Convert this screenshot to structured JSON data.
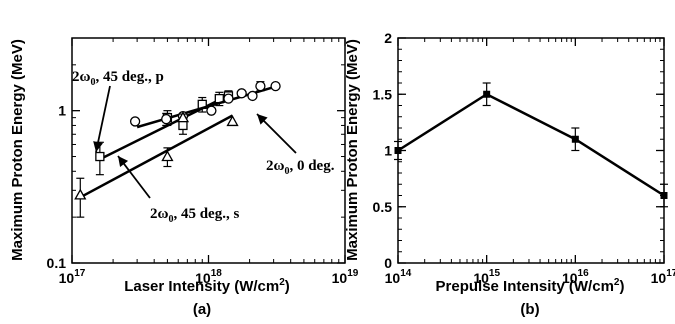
{
  "chart_data": [
    {
      "type": "scatter",
      "panel_label": "(a)",
      "xlabel": "Laser Intensity (W/cm2)",
      "ylabel": "Maximum Proton Energy (MeV)",
      "x_scale": "log",
      "y_scale": "log",
      "xlim": [
        1e+17,
        1e+19
      ],
      "ylim": [
        0.1,
        3
      ],
      "x_ticks": [
        {
          "base": "10",
          "exp": "17",
          "value": 1e+17
        },
        {
          "base": "10",
          "exp": "18",
          "value": 1e+18
        },
        {
          "base": "10",
          "exp": "19",
          "value": 1e+19
        }
      ],
      "y_ticks": [
        {
          "label": "0.1",
          "value": 0.1
        },
        {
          "label": "1",
          "value": 1
        }
      ],
      "series": [
        {
          "name": "2ω0, 45 deg., p",
          "marker": "square",
          "x": [
            1.6e+17,
            5e+17,
            6.5e+17,
            9e+17,
            1.2e+18,
            1.4e+18
          ],
          "y": [
            0.5,
            0.9,
            0.8,
            1.1,
            1.2,
            1.25
          ],
          "err": [
            0.12,
            0.1,
            0.1,
            0.12,
            0.12,
            0.1
          ],
          "fit_x": [
            1.6e+17,
            1.5e+18
          ],
          "fit_y": [
            0.48,
            1.3
          ]
        },
        {
          "name": "2ω0, 0 deg.",
          "marker": "circle",
          "x": [
            2.9e+17,
            4.9e+17,
            6.5e+17,
            1.05e+18,
            1.4e+18,
            1.75e+18,
            2.1e+18,
            2.4e+18,
            3.1e+18
          ],
          "y": [
            0.85,
            0.88,
            0.92,
            1.0,
            1.2,
            1.3,
            1.25,
            1.45,
            1.45
          ],
          "err": [
            0,
            0.08,
            0,
            0,
            0,
            0,
            0,
            0.1,
            0
          ],
          "fit_x": [
            3e+17,
            3.2e+18
          ],
          "fit_y": [
            0.78,
            1.45
          ]
        },
        {
          "name": "2ω0, 45 deg., s",
          "marker": "triangle",
          "x": [
            1.15e+17,
            5e+17,
            6.5e+17,
            1.5e+18
          ],
          "y": [
            0.28,
            0.5,
            0.9,
            0.85
          ],
          "err": [
            0.08,
            0.07,
            0.05,
            0
          ],
          "fit_x": [
            1.15e+17,
            1.5e+18
          ],
          "fit_y": [
            0.27,
            0.93
          ]
        }
      ],
      "annotations": [
        {
          "text": "2ω0, 45 deg., p",
          "main": "2ω",
          "sub": "0",
          "rest": ", 45 deg., p"
        },
        {
          "text": "2ω0, 0 deg.",
          "main": "2ω",
          "sub": "0",
          "rest": ", 0 deg."
        },
        {
          "text": "2ω0, 45 deg., s",
          "main": "2ω",
          "sub": "0",
          "rest": ", 45 deg., s"
        }
      ]
    },
    {
      "type": "line",
      "panel_label": "(b)",
      "xlabel": "Prepulse Intensity (W/cm2)",
      "ylabel": "Maximum Proton Energy (MeV)",
      "x_scale": "log",
      "y_scale": "linear",
      "xlim": [
        100000000000000.0,
        1e+17
      ],
      "ylim": [
        0,
        2
      ],
      "x_ticks": [
        {
          "base": "10",
          "exp": "14",
          "value": 100000000000000.0
        },
        {
          "base": "10",
          "exp": "15",
          "value": 1000000000000000.0
        },
        {
          "base": "10",
          "exp": "16",
          "value": 1e+16
        },
        {
          "base": "10",
          "exp": "17",
          "value": 1e+17
        }
      ],
      "y_ticks": [
        {
          "label": "0",
          "value": 0
        },
        {
          "label": "0.5",
          "value": 0.5
        },
        {
          "label": "1",
          "value": 1
        },
        {
          "label": "1.5",
          "value": 1.5
        },
        {
          "label": "2",
          "value": 2
        }
      ],
      "series": [
        {
          "marker": "square",
          "x": [
            100000000000000.0,
            1000000000000000.0,
            1e+16,
            1e+17
          ],
          "y": [
            1.0,
            1.5,
            1.1,
            0.6
          ],
          "err": [
            0.08,
            0.1,
            0.1,
            0.1
          ]
        }
      ]
    }
  ]
}
